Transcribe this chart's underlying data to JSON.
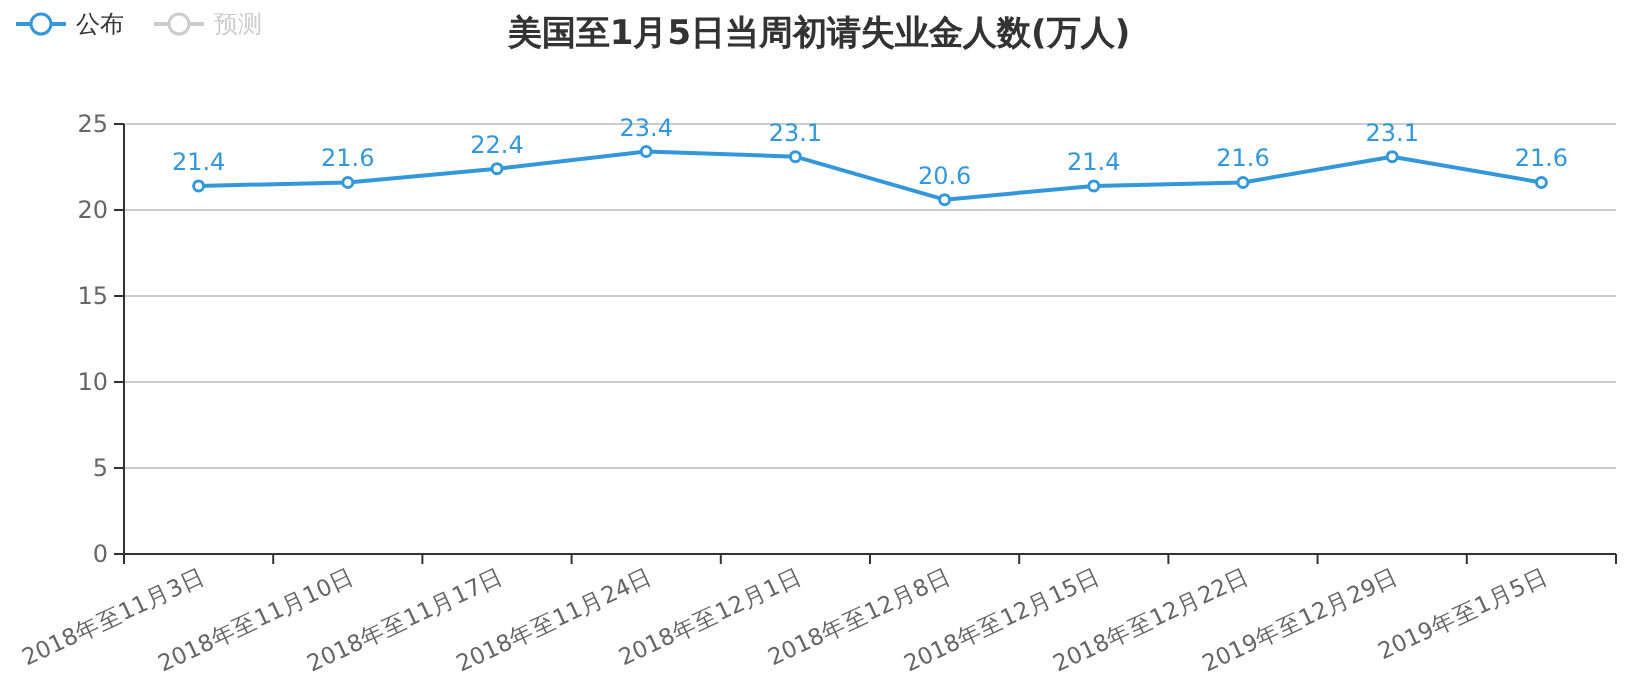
{
  "chart_data": {
    "type": "line",
    "title": "美国至1月5日当周初请失业金人数(万人)",
    "categories": [
      "2018年至11月3日",
      "2018年至11月10日",
      "2018年至11月17日",
      "2018年至11月24日",
      "2018年至12月1日",
      "2018年至12月8日",
      "2018年至12月15日",
      "2018年至12月22日",
      "2019年至12月29日",
      "2019年至1月5日"
    ],
    "series": [
      {
        "name": "公布",
        "color": "#3398db",
        "values": [
          21.4,
          21.6,
          22.4,
          23.4,
          23.1,
          20.6,
          21.4,
          21.6,
          23.1,
          21.6
        ]
      },
      {
        "name": "预测",
        "color": "#cccccc",
        "values": [
          null,
          null,
          null,
          null,
          null,
          null,
          null,
          null,
          null,
          null
        ]
      }
    ],
    "ylim": [
      0,
      25
    ],
    "yticks": [
      0,
      5,
      10,
      15,
      20,
      25
    ],
    "grid": "y",
    "legend": "top left",
    "marker": "circle",
    "line_style": "solid",
    "data_labels": true
  }
}
